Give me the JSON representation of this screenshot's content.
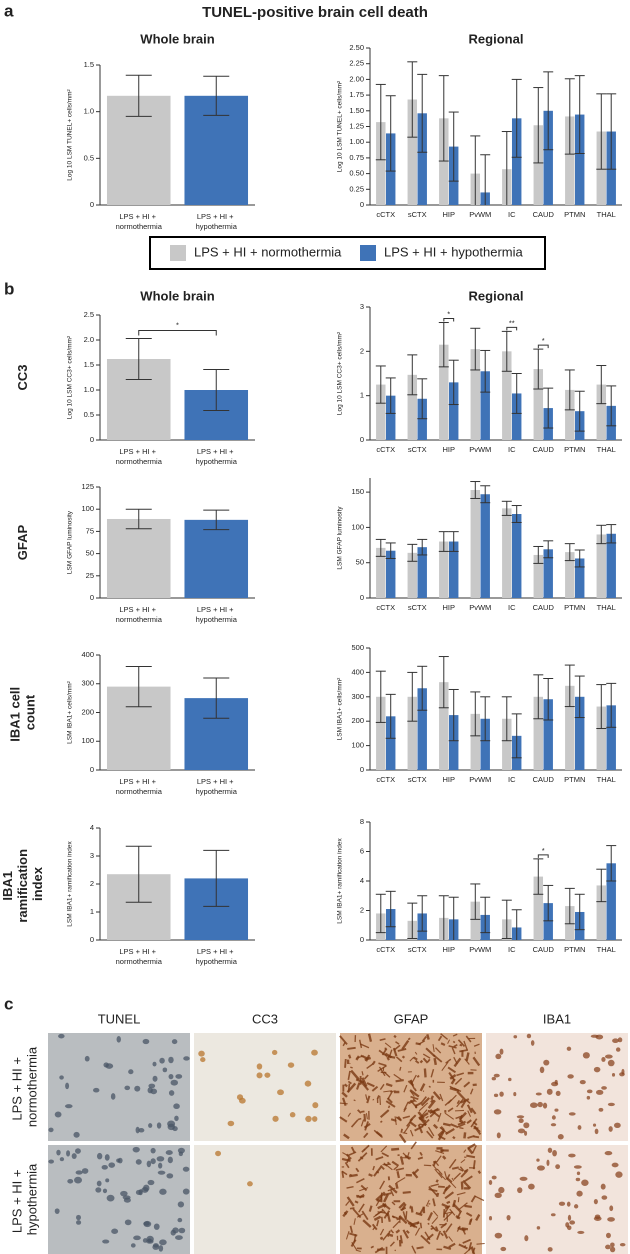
{
  "figure": {
    "title": "TUNEL-positive brain cell death",
    "panels": [
      {
        "label": "a"
      },
      {
        "label": "b",
        "rows": [
          "CC3",
          "GFAP",
          "IBA1 cell count",
          "IBA1 ramification index"
        ]
      },
      {
        "label": "c",
        "columns": [
          "TUNEL",
          "CC3",
          "GFAP",
          "IBA1"
        ],
        "rows": [
          "LPS + HI + normothermia",
          "LPS + HI + hypothermia"
        ]
      }
    ]
  },
  "chart_data": [
    {
      "type": "bar",
      "title": "Whole brain",
      "ylabel": "Log 10 LSM TUNEL+ cells/mm²",
      "categories": [
        "LPS + HI + normothermia",
        "LPS + HI + hypothermia"
      ],
      "values": [
        1.17,
        1.17
      ],
      "errors": [
        0.22,
        0.21
      ],
      "colors": [
        "#c8c8c8",
        "#3f73b7"
      ],
      "ylim": [
        0,
        1.5
      ],
      "yticks": [
        0,
        0.5,
        {
          "value": 1,
          "label": "1.0"
        },
        1.5
      ]
    },
    {
      "type": "grouped_bar",
      "title": "Regional",
      "ylabel": "Log 10 LSM TUNEL+ cells/mm²",
      "categories": [
        "cCTX",
        "sCTX",
        "HIP",
        "PvWM",
        "IC",
        "CAUD",
        "PTMN",
        "THAL"
      ],
      "series": [
        {
          "name": "LPS + HI + normothermia",
          "color": "#c8c8c8",
          "values": [
            1.32,
            1.68,
            1.38,
            0.5,
            0.57,
            1.27,
            1.41,
            1.17
          ],
          "errors": [
            0.6,
            0.6,
            0.68,
            0.6,
            0.6,
            0.6,
            0.6,
            0.6
          ]
        },
        {
          "name": "LPS + HI + hypothermia",
          "color": "#3f73b7",
          "values": [
            1.14,
            1.46,
            0.93,
            0.2,
            1.38,
            1.5,
            1.44,
            1.17
          ],
          "errors": [
            0.6,
            0.62,
            0.55,
            0.6,
            0.62,
            0.62,
            0.62,
            0.6
          ]
        }
      ],
      "ylim": [
        0,
        2.5
      ],
      "yticks": [
        0,
        0.25,
        {
          "value": 0.5,
          "label": "0.50"
        },
        0.75,
        {
          "value": 1,
          "label": "1.00"
        },
        1.25,
        {
          "value": 1.5,
          "label": "1.50"
        },
        1.75,
        {
          "value": 2,
          "label": "2.00"
        },
        2.25,
        {
          "value": 2.5,
          "label": "2.50"
        }
      ]
    },
    {
      "type": "bar",
      "title": "Whole brain",
      "ylabel": "Log 10 LSM CC3+ cells/mm²",
      "categories": [
        "LPS + HI + normothermia",
        "LPS + HI + hypothermia"
      ],
      "values": [
        1.62,
        1.0
      ],
      "errors": [
        0.41,
        0.41
      ],
      "colors": [
        "#c8c8c8",
        "#3f73b7"
      ],
      "ylim": [
        0,
        2.5
      ],
      "yticks": [
        0,
        0.5,
        {
          "value": 1,
          "label": "1.0"
        },
        1.5,
        {
          "value": 2,
          "label": "2.0"
        },
        2.5
      ],
      "annotations": [
        {
          "label": "*"
        }
      ]
    },
    {
      "type": "grouped_bar",
      "title": "Regional",
      "ylabel": "Log 10 LSM CC3+ cells/mm²",
      "categories": [
        "cCTX",
        "sCTX",
        "HIP",
        "PvWM",
        "IC",
        "CAUD",
        "PTMN",
        "THAL"
      ],
      "series": [
        {
          "name": "LPS + HI + normothermia",
          "color": "#c8c8c8",
          "values": [
            1.25,
            1.47,
            2.15,
            2.05,
            2.0,
            1.6,
            1.13,
            1.25
          ],
          "errors": [
            0.42,
            0.45,
            0.5,
            0.47,
            0.45,
            0.45,
            0.45,
            0.43
          ]
        },
        {
          "name": "LPS + HI + hypothermia",
          "color": "#3f73b7",
          "values": [
            1.0,
            0.93,
            1.3,
            1.55,
            1.05,
            0.72,
            0.65,
            0.77
          ],
          "errors": [
            0.4,
            0.45,
            0.5,
            0.47,
            0.45,
            0.45,
            0.45,
            0.45
          ]
        }
      ],
      "ylim": [
        0,
        3
      ],
      "yticks": [
        0,
        1,
        2,
        3
      ],
      "annotations": [
        {
          "label": "*",
          "category": "HIP"
        },
        {
          "label": "**",
          "category": "IC"
        },
        {
          "label": "*",
          "category": "CAUD"
        }
      ]
    },
    {
      "type": "bar",
      "ylabel": "LSM GFAP luminosity",
      "categories": [
        "LPS + HI + normothermia",
        "LPS + HI + hypothermia"
      ],
      "values": [
        89,
        88
      ],
      "errors": [
        11,
        11
      ],
      "colors": [
        "#c8c8c8",
        "#3f73b7"
      ],
      "ylim": [
        0,
        125
      ],
      "yticks": [
        0,
        25,
        50,
        75,
        100,
        125
      ]
    },
    {
      "type": "grouped_bar",
      "ylabel": "LSM GFAP luminosity",
      "categories": [
        "cCTX",
        "sCTX",
        "HIP",
        "PvWM",
        "IC",
        "CAUD",
        "PTMN",
        "THAL"
      ],
      "series": [
        {
          "name": "LPS + HI + normothermia",
          "color": "#c8c8c8",
          "values": [
            71,
            64,
            80,
            153,
            127,
            61,
            65,
            90
          ],
          "errors": [
            12,
            12,
            14,
            12,
            10,
            12,
            12,
            13
          ]
        },
        {
          "name": "LPS + HI + hypothermia",
          "color": "#3f73b7",
          "values": [
            67,
            72,
            80,
            147,
            119,
            69,
            56,
            91
          ],
          "errors": [
            11,
            11,
            14,
            12,
            12,
            12,
            12,
            13
          ]
        }
      ],
      "ylim": [
        0,
        170
      ],
      "yticks": [
        0,
        50,
        100,
        150
      ]
    },
    {
      "type": "bar",
      "ylabel": "LSM IBA1+ cells/mm²",
      "categories": [
        "LPS + HI + normothermia",
        "LPS + HI + hypothermia"
      ],
      "values": [
        290,
        250
      ],
      "errors": [
        70,
        70
      ],
      "colors": [
        "#c8c8c8",
        "#3f73b7"
      ],
      "ylim": [
        0,
        400
      ],
      "yticks": [
        0,
        100,
        200,
        300,
        400
      ]
    },
    {
      "type": "grouped_bar",
      "ylabel": "LSM IBA1+ cells/mm²",
      "categories": [
        "cCTX",
        "sCTX",
        "HIP",
        "PvWM",
        "IC",
        "CAUD",
        "PTMN",
        "THAL"
      ],
      "series": [
        {
          "name": "LPS + HI + normothermia",
          "color": "#c8c8c8",
          "values": [
            300,
            300,
            360,
            230,
            210,
            300,
            345,
            260
          ],
          "errors": [
            105,
            100,
            105,
            90,
            90,
            90,
            85,
            90
          ]
        },
        {
          "name": "LPS + HI + hypothermia",
          "color": "#3f73b7",
          "values": [
            220,
            335,
            225,
            210,
            140,
            290,
            300,
            265
          ],
          "errors": [
            90,
            90,
            105,
            90,
            90,
            85,
            85,
            90
          ]
        }
      ],
      "ylim": [
        0,
        500
      ],
      "yticks": [
        0,
        100,
        200,
        300,
        400,
        500
      ]
    },
    {
      "type": "bar",
      "ylabel": "LSM IBA1+ ramification index",
      "categories": [
        "LPS + HI + normothermia",
        "LPS + HI + hypothermia"
      ],
      "values": [
        2.35,
        2.2
      ],
      "errors": [
        1.0,
        1.0
      ],
      "colors": [
        "#c8c8c8",
        "#3f73b7"
      ],
      "ylim": [
        0,
        4
      ],
      "yticks": [
        0,
        1,
        2,
        3,
        4
      ]
    },
    {
      "type": "grouped_bar",
      "ylabel": "LSM IBA1+ ramification index",
      "categories": [
        "cCTX",
        "sCTX",
        "HIP",
        "PvWM",
        "IC",
        "CAUD",
        "PTMN",
        "THAL"
      ],
      "series": [
        {
          "name": "LPS + HI + normothermia",
          "color": "#c8c8c8",
          "values": [
            1.8,
            1.3,
            1.5,
            2.6,
            1.4,
            4.3,
            2.3,
            3.7
          ],
          "errors": [
            1.3,
            1.2,
            1.5,
            1.2,
            1.3,
            1.2,
            1.2,
            1.1
          ]
        },
        {
          "name": "LPS + HI + hypothermia",
          "color": "#3f73b7",
          "values": [
            2.1,
            1.8,
            1.4,
            1.7,
            0.85,
            2.5,
            1.9,
            5.2
          ],
          "errors": [
            1.2,
            1.2,
            1.5,
            1.2,
            1.2,
            1.2,
            1.2,
            1.2
          ]
        }
      ],
      "ylim": [
        0,
        8
      ],
      "yticks": [
        0,
        2,
        4,
        6,
        8
      ],
      "annotations": [
        {
          "label": "*",
          "category": "CAUD"
        }
      ]
    }
  ]
}
